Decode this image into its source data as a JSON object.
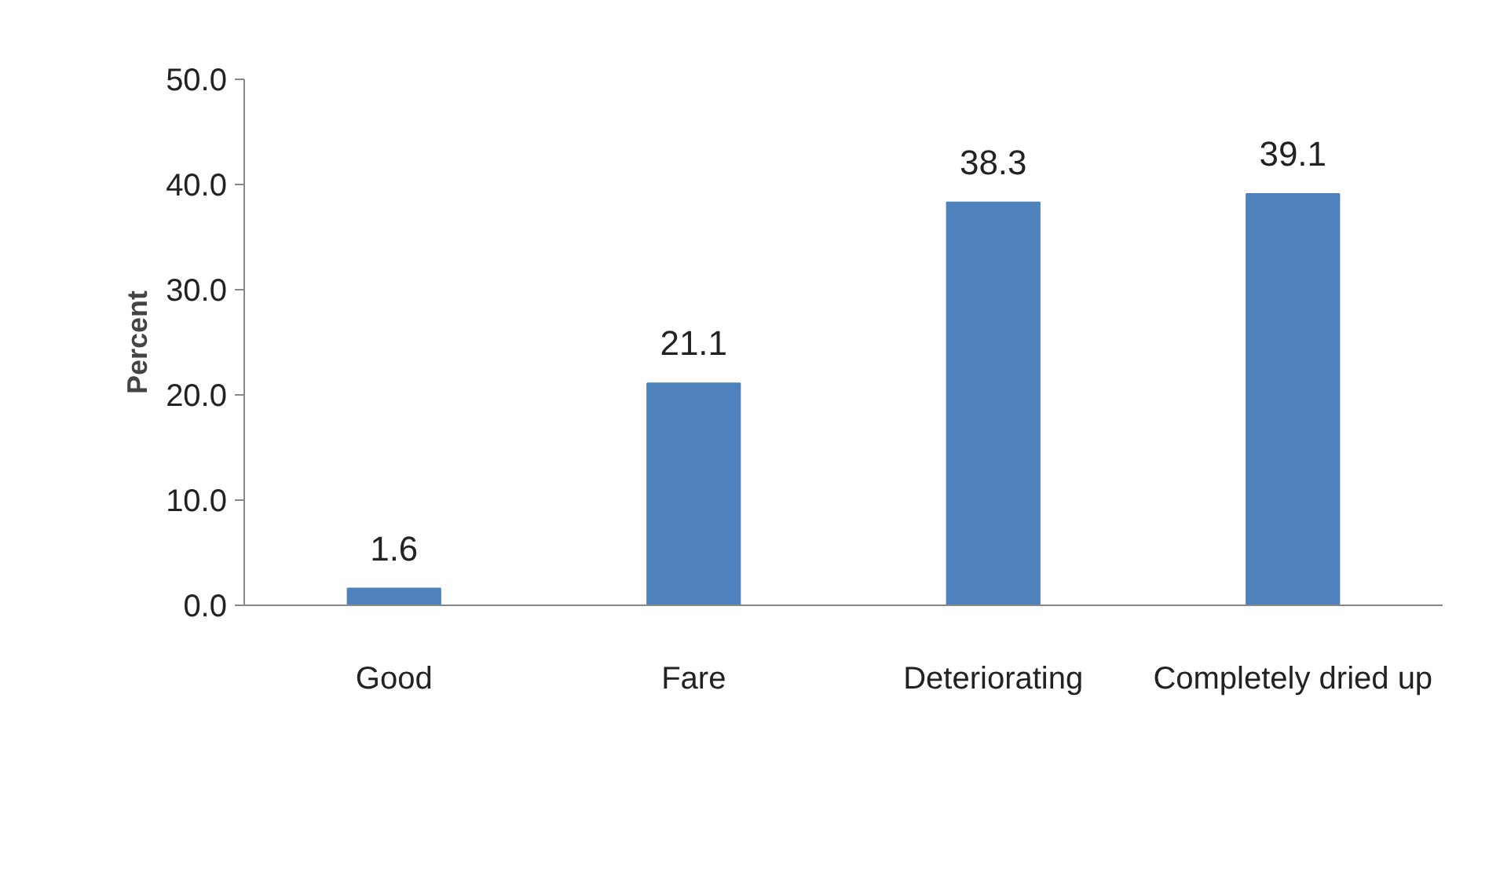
{
  "chart_data": {
    "type": "bar",
    "ylabel": "Percent",
    "categories": [
      "Good",
      "Fare",
      "Deteriorating",
      "Completely dried up"
    ],
    "values": [
      1.6,
      21.1,
      38.3,
      39.1
    ],
    "color": "#4f81bd",
    "ylim": [
      0,
      50
    ],
    "yticks": [
      {
        "value": 0,
        "label": "0.0"
      },
      {
        "value": 10,
        "label": "10.0"
      },
      {
        "value": 20,
        "label": "20.0"
      },
      {
        "value": 30,
        "label": "30.0"
      },
      {
        "value": 40,
        "label": "40.0"
      },
      {
        "value": 50,
        "label": "50.0"
      }
    ],
    "data_labels": true,
    "grid": false
  }
}
